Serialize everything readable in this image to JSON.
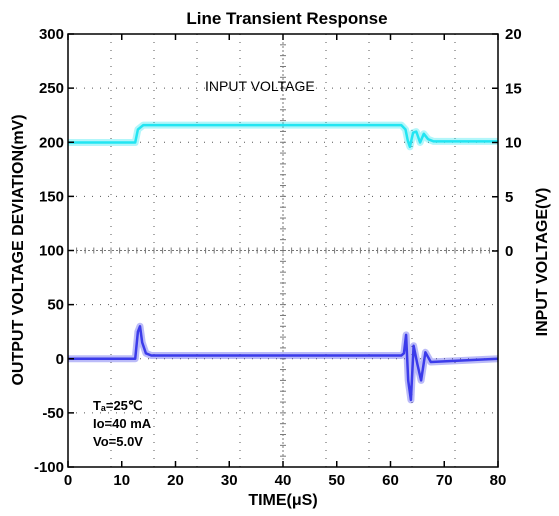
{
  "chart_data": {
    "type": "line",
    "title": "Line Transient Response",
    "xlabel": "TIME(μS)",
    "ylabel_left": "OUTPUT VOLTAGE DEVIATION(mV)",
    "ylabel_right": "INPUT VOLTAGE(V)",
    "xlim": [
      0,
      80
    ],
    "ylim_left": [
      -100,
      300
    ],
    "ylim_right": [
      0,
      20
    ],
    "x_ticks": [
      "0",
      "10",
      "20",
      "30",
      "40",
      "50",
      "60",
      "70",
      "80"
    ],
    "y_ticks_left": [
      "-100",
      "-50",
      "0",
      "50",
      "100",
      "150",
      "200",
      "250",
      "300"
    ],
    "y_ticks_right": [
      "0",
      "5",
      "10",
      "15",
      "20"
    ],
    "grid": true,
    "series": [
      {
        "name": "INPUT VOLTAGE",
        "axis": "right",
        "color": "#22e5f2",
        "x": [
          0,
          12.5,
          13,
          14,
          62,
          62.8,
          63.2,
          63.6,
          64.2,
          64.8,
          65.5,
          66.2,
          67,
          68,
          80
        ],
        "y": [
          10.0,
          10.0,
          11.2,
          11.6,
          11.6,
          11.2,
          10.2,
          9.6,
          10.9,
          11.0,
          10.0,
          10.8,
          10.3,
          10.1,
          10.1
        ]
      },
      {
        "name": "",
        "axis": "left",
        "color": "#3b3bea",
        "x": [
          0,
          12.5,
          13.0,
          13.4,
          13.8,
          14.5,
          15.5,
          62,
          62.5,
          62.9,
          63.3,
          63.8,
          64.3,
          65.0,
          65.7,
          66.5,
          67.5,
          80
        ],
        "y": [
          0,
          0,
          25,
          30,
          15,
          5,
          3,
          3,
          5,
          22,
          -20,
          -38,
          12,
          -5,
          -20,
          6,
          -3,
          0
        ]
      }
    ],
    "annotations": {
      "conditions": [
        "Tₐ=25℃",
        "Io=40 mA",
        "Vo=5.0V"
      ]
    }
  }
}
